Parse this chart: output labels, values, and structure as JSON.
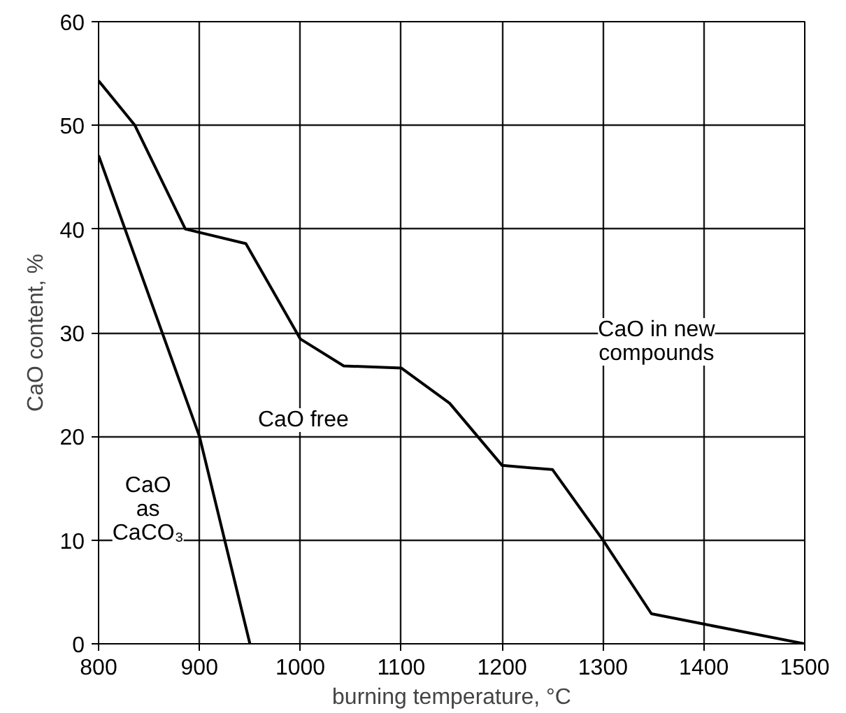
{
  "chart_data": {
    "type": "line",
    "xlabel": "burning temperature, °C",
    "ylabel": "CaO content, %",
    "xlim": [
      800,
      1500
    ],
    "ylim": [
      0,
      60
    ],
    "xticks": [
      800,
      900,
      1000,
      1100,
      1200,
      1300,
      1400,
      1500
    ],
    "yticks": [
      0,
      10,
      20,
      30,
      40,
      50,
      60
    ],
    "grid": true,
    "line_style": "solid",
    "marker": "none",
    "series": [
      {
        "color": "#000000",
        "x": [
          800,
          836,
          886,
          946,
          1000,
          1043,
          1100,
          1148,
          1200,
          1250,
          1300,
          1348,
          1400,
          1500
        ],
        "values": [
          54.3,
          50,
          40,
          38.6,
          29.4,
          26.8,
          26.6,
          23.2,
          17.2,
          16.8,
          10,
          2.9,
          1.9,
          0
        ]
      },
      {
        "color": "#000000",
        "x": [
          800,
          900,
          950
        ],
        "values": [
          47.1,
          20,
          0
        ]
      }
    ],
    "annotations": [
      "CaO\nas\nCaCO₃",
      "CaO free",
      "CaO in new\ncompounds"
    ]
  }
}
